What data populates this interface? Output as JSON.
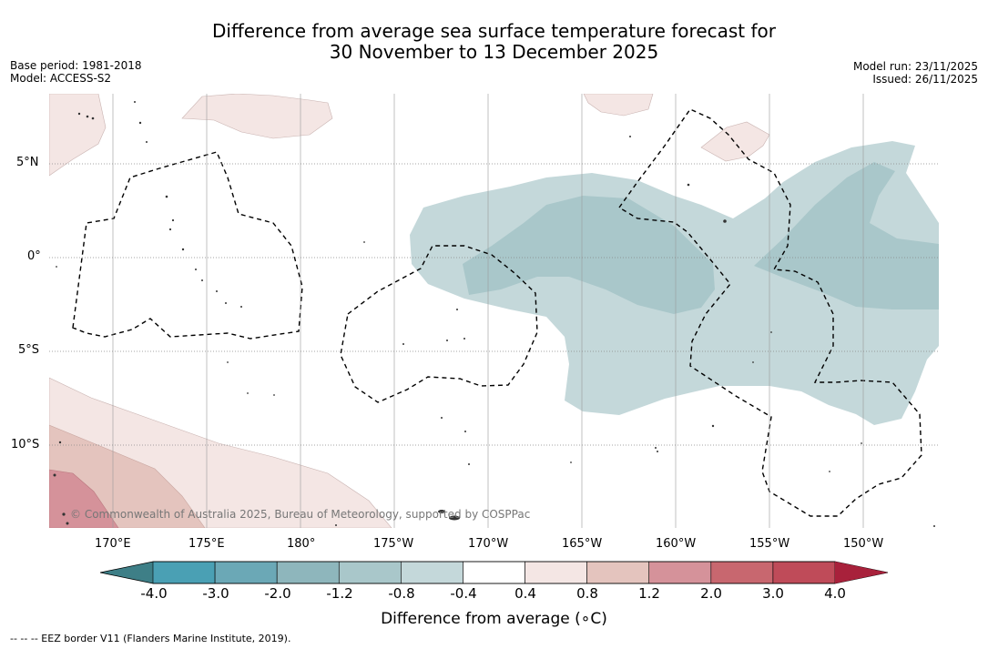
{
  "title": {
    "line1": "Difference from average sea surface temperature forecast for",
    "line2": "30 November to 13 December 2025"
  },
  "meta_left": {
    "base_period": "Base period: 1981-2018",
    "model": "Model: ACCESS-S2"
  },
  "meta_right": {
    "model_run": "Model run: 23/11/2025",
    "issued": "Issued: 26/11/2025"
  },
  "axes": {
    "lat_labels": [
      "5°N",
      "0°",
      "5°S",
      "10°S"
    ],
    "lon_labels": [
      "170°E",
      "175°E",
      "180°",
      "175°W",
      "170°W",
      "165°W",
      "160°W",
      "155°W",
      "150°W"
    ]
  },
  "colorbar": {
    "title": "Difference from average (",
    "title_unit": "∘C)",
    "ticks": [
      "-4.0",
      "-3.0",
      "-2.0",
      "-1.2",
      "-0.8",
      "-0.4",
      "0.4",
      "0.8",
      "1.2",
      "2.0",
      "3.0",
      "4.0"
    ],
    "colors": [
      "#3e7f87",
      "#4aa0b4",
      "#6ba8b6",
      "#8eb6bc",
      "#a9c7ca",
      "#c4d8da",
      "#ffffff",
      "#f4e6e4",
      "#e4c4be",
      "#d5929a",
      "#c8676f",
      "#bf4b59",
      "#a8213b"
    ]
  },
  "copyright": "© Commonwealth of Australia 2025, Bureau of Meteorology, supported by COSPPac",
  "legend_footnote": "--  --  -- EEZ border V11 (Flanders Marine Institute, 2019).",
  "anomaly_colors": {
    "cool_light": "#c4d8da",
    "cool_mid": "#a9c7ca",
    "warm_light": "#f4e6e4",
    "warm_mid": "#e4c4be",
    "warm_strong": "#d5929a"
  }
}
